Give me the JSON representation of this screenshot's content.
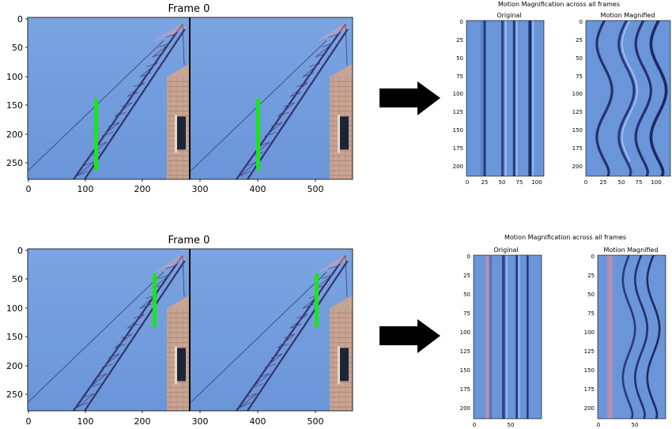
{
  "rows": [
    {
      "frame_title": "Frame 0",
      "frame_x_ticks": [
        "0",
        "100",
        "200",
        "300",
        "400",
        "500"
      ],
      "frame_y_ticks": [
        "0",
        "50",
        "100",
        "150",
        "200",
        "250"
      ],
      "mm_title": "Motion Magnification across all frames",
      "panel_left_title": "Original",
      "panel_right_title": "Motion Magnified",
      "panel_y_ticks": [
        "0",
        "25",
        "50",
        "75",
        "100",
        "125",
        "150",
        "175",
        "200"
      ],
      "panel_left_x_ticks": [
        "0",
        "25",
        "50",
        "75",
        "100"
      ],
      "panel_right_x_ticks": [
        "0",
        "25",
        "50",
        "75",
        "100"
      ]
    },
    {
      "frame_title": "Frame 0",
      "frame_x_ticks": [
        "0",
        "100",
        "200",
        "300",
        "400",
        "500"
      ],
      "frame_y_ticks": [
        "0",
        "50",
        "100",
        "150",
        "200",
        "250"
      ],
      "mm_title": "Motion Magnification across all frames",
      "panel_left_title": "Original",
      "panel_right_title": "Motion Magnified",
      "panel_y_ticks": [
        "0",
        "25",
        "50",
        "75",
        "100",
        "125",
        "150",
        "175",
        "200"
      ],
      "panel_left_x_ticks": [
        "0",
        "50"
      ],
      "panel_right_x_ticks": [
        "0",
        "50"
      ]
    }
  ],
  "colors": {
    "sky": "#6f9bdc",
    "marker": "#19e619",
    "crane": "#3b3a6e",
    "building": "#c9a594",
    "arrow": "#000000"
  }
}
